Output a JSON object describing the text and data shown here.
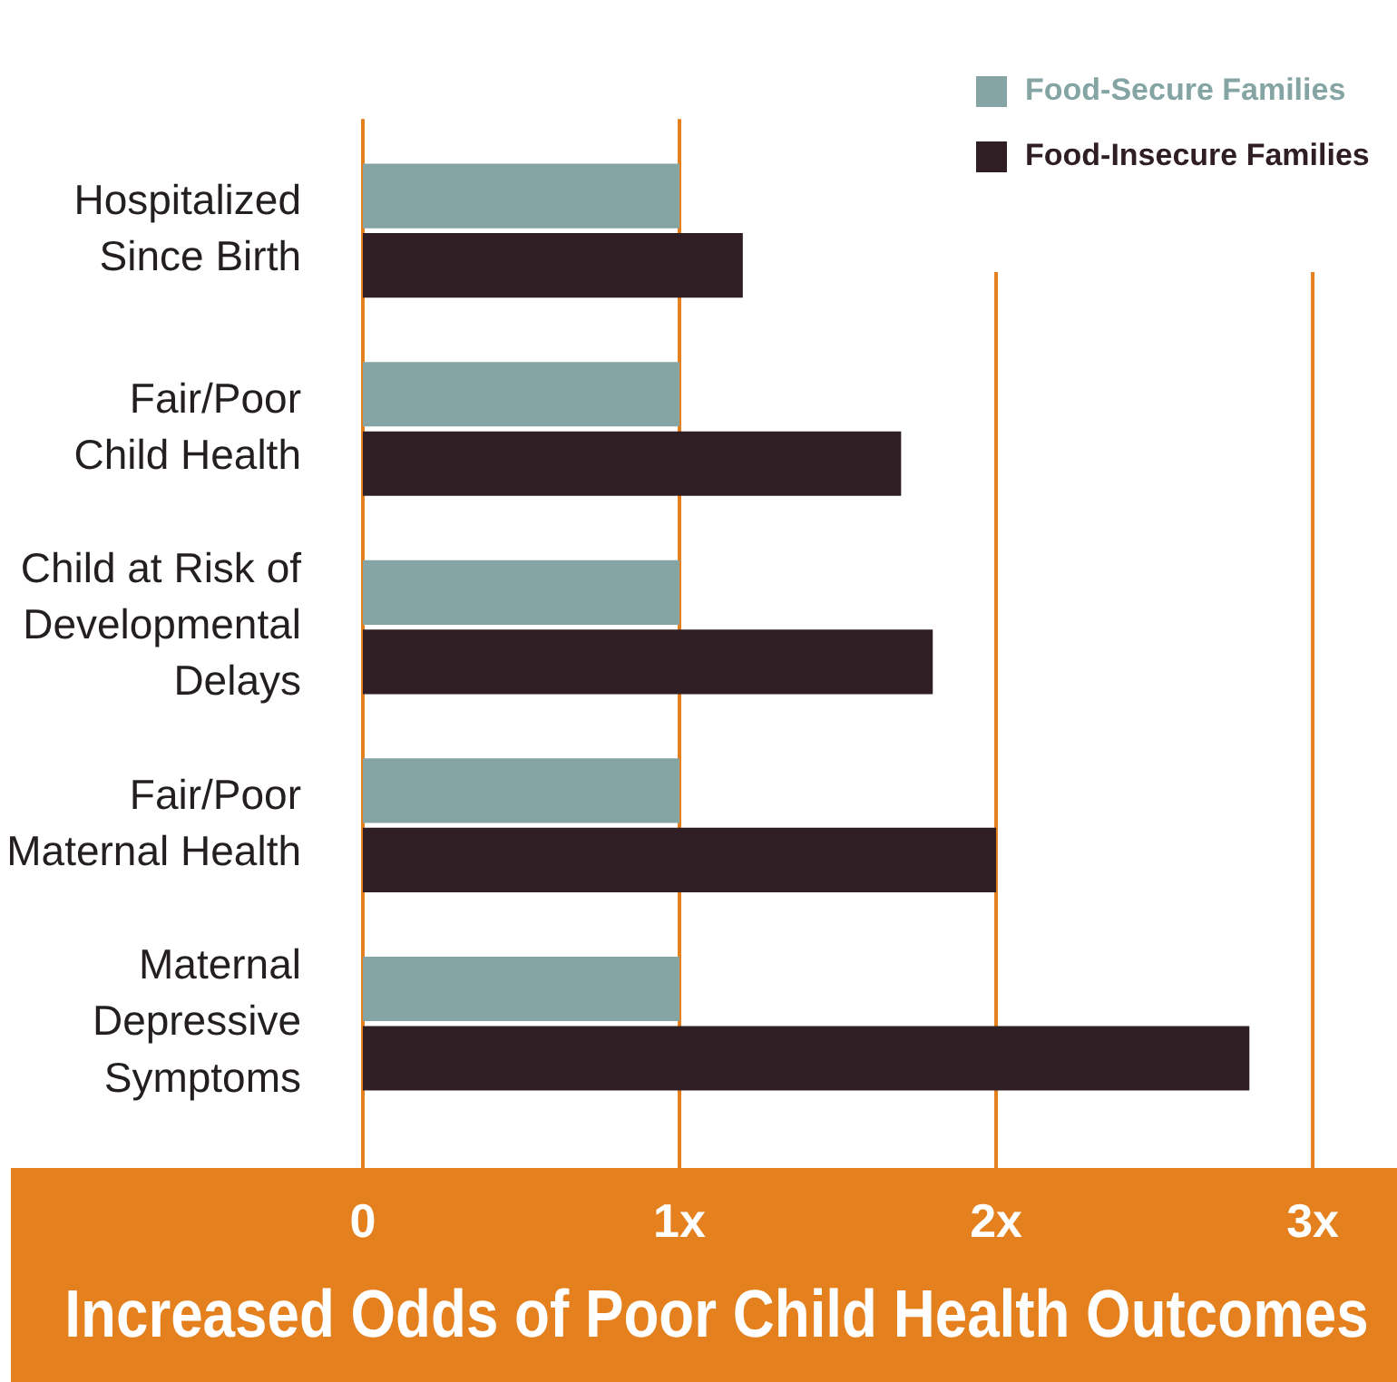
{
  "chart_data": {
    "type": "bar",
    "orientation": "horizontal",
    "categories": [
      "Hospitalized\nSince Birth",
      "Fair/Poor\nChild Health",
      "Child at Risk of\nDevelopmental\nDelays",
      "Fair/Poor\nMaternal Health",
      "Maternal\nDepressive\nSymptoms"
    ],
    "series": [
      {
        "name": "Food-Secure Families",
        "color": "#85a4a4",
        "values": [
          1,
          1,
          1,
          1,
          1
        ]
      },
      {
        "name": "Food-Insecure Families",
        "color": "#2f1e23",
        "values": [
          1.2,
          1.7,
          1.8,
          2.0,
          2.8
        ]
      }
    ],
    "xlabel": "Increased Odds of Poor Child Health Outcomes",
    "xlim": [
      0,
      3
    ],
    "xticks": [
      0,
      {
        "value": 1,
        "label": "1x"
      },
      {
        "value": 2,
        "label": "2x"
      },
      {
        "value": 3,
        "label": "3x"
      }
    ],
    "grid": "x",
    "legend": "top right"
  }
}
